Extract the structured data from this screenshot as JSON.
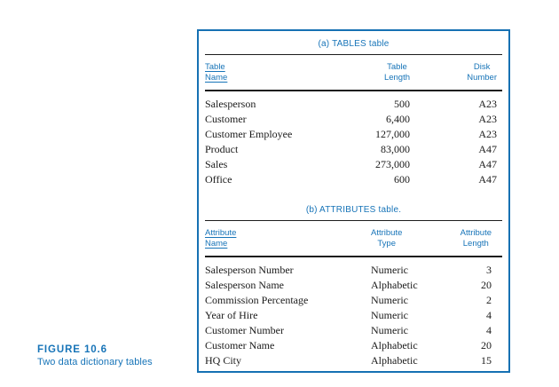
{
  "colors": {
    "accent_blue": "#1774B8",
    "box_border": "#1671B3",
    "rule_black": "#1d1d1d",
    "body_text": "#1a1a1a",
    "background": "#ffffff"
  },
  "figure_caption": {
    "label": "FIGURE 10.6",
    "title": "Two data dictionary tables"
  },
  "tables": [
    {
      "title": "(a) TABLES table",
      "columns": [
        {
          "line1": "Table",
          "line2": "Name"
        },
        {
          "line1": "Table",
          "line2": "Length"
        },
        {
          "line1": "Disk",
          "line2": "Number"
        }
      ],
      "rows": [
        [
          "Salesperson",
          "500",
          "A23"
        ],
        [
          "Customer",
          "6,400",
          "A23"
        ],
        [
          "Customer Employee",
          "127,000",
          "A23"
        ],
        [
          "Product",
          "83,000",
          "A47"
        ],
        [
          "Sales",
          "273,000",
          "A47"
        ],
        [
          "Office",
          "600",
          "A47"
        ]
      ]
    },
    {
      "title": "(b) ATTRIBUTES table.",
      "columns": [
        {
          "line1": "Attribute",
          "line2": "Name"
        },
        {
          "line1": "Attribute",
          "line2": "Type"
        },
        {
          "line1": "Attribute",
          "line2": "Length"
        }
      ],
      "rows": [
        [
          "Salesperson Number",
          "Numeric",
          "3"
        ],
        [
          "Salesperson Name",
          "Alphabetic",
          "20"
        ],
        [
          "Commission Percentage",
          "Numeric",
          "2"
        ],
        [
          "Year of Hire",
          "Numeric",
          "4"
        ],
        [
          "Customer Number",
          "Numeric",
          "4"
        ],
        [
          "Customer Name",
          "Alphabetic",
          "20"
        ],
        [
          "HQ City",
          "Alphabetic",
          "15"
        ]
      ]
    }
  ]
}
